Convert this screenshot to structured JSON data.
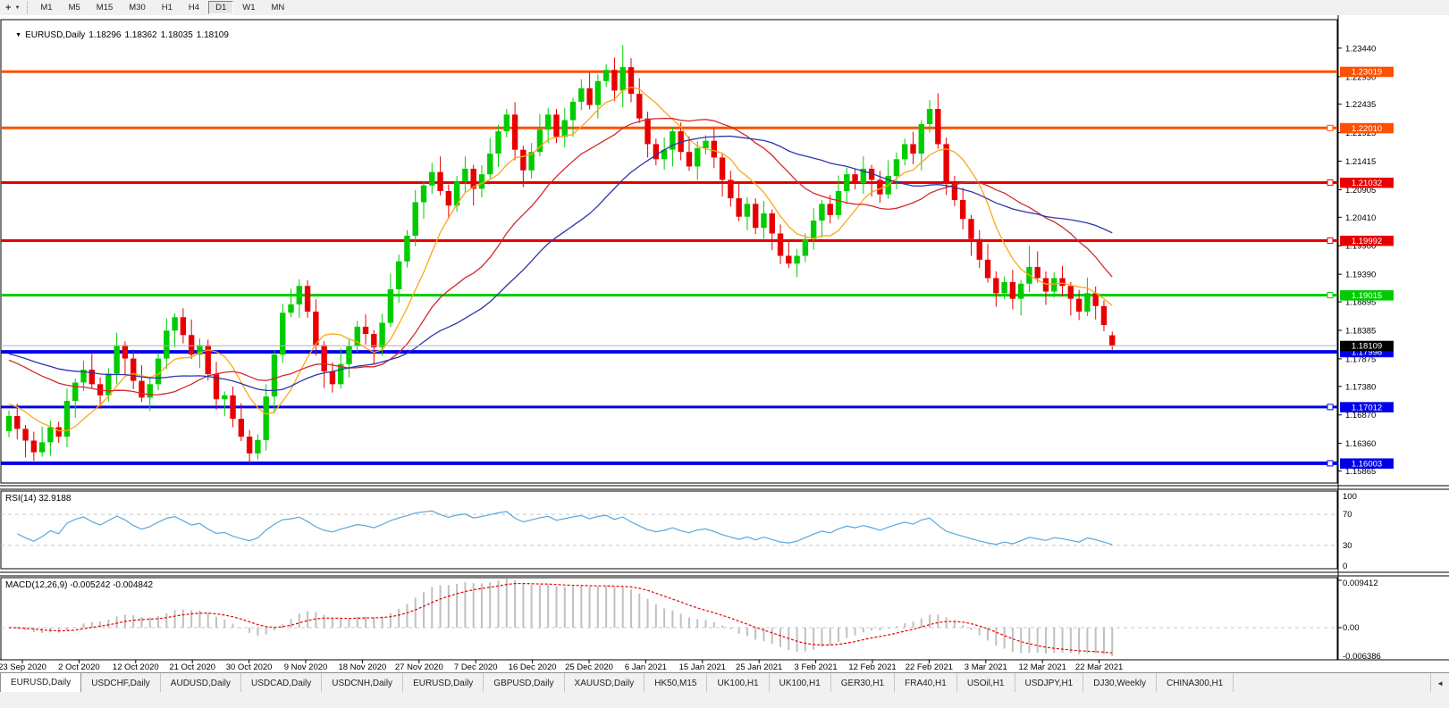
{
  "icons": {
    "cursor": "+",
    "caret": "▼",
    "collapse": "▼",
    "tab_scroll_left": "◄"
  },
  "toolbar": {
    "timeframes": [
      "M1",
      "M5",
      "M15",
      "M30",
      "H1",
      "H4",
      "D1",
      "W1",
      "MN"
    ],
    "active_timeframe": "D1"
  },
  "chart_window": {
    "title": "EURUSD,Daily",
    "open": "1.18296",
    "high": "1.18362",
    "low": "1.18035",
    "close": "1.18109"
  },
  "rsi_panel": {
    "label": "RSI(14) 32.9188"
  },
  "macd_panel": {
    "label": "MACD(12,26,9) -0.005242 -0.004842"
  },
  "chart_data": {
    "type": "candlestick",
    "symbol": "EURUSD",
    "timeframe": "Daily",
    "x_labels": [
      "23 Sep 2020",
      "2 Oct 2020",
      "12 Oct 2020",
      "21 Oct 2020",
      "30 Oct 2020",
      "9 Nov 2020",
      "18 Nov 2020",
      "27 Nov 2020",
      "7 Dec 2020",
      "16 Dec 2020",
      "25 Dec 2020",
      "6 Jan 2021",
      "15 Jan 2021",
      "25 Jan 2021",
      "3 Feb 2021",
      "12 Feb 2021",
      "22 Feb 2021",
      "3 Mar 2021",
      "12 Mar 2021",
      "22 Mar 2021"
    ],
    "y_axis": {
      "top_price": 1.2395,
      "bottom_price": 1.1565,
      "ticks": [
        "1.23440",
        "1.22930",
        "1.22435",
        "1.21925",
        "1.21415",
        "1.20905",
        "1.20410",
        "1.19900",
        "1.19390",
        "1.18895",
        "1.18385",
        "1.17875",
        "1.17380",
        "1.16870",
        "1.16360",
        "1.15865"
      ]
    },
    "horizontal_lines": [
      {
        "label": "1.23019",
        "price": 1.23019,
        "color": "#FF4F00",
        "width": 3,
        "marker": false
      },
      {
        "label": "1.22010",
        "price": 1.2201,
        "color": "#FF4F00",
        "width": 3,
        "marker": true
      },
      {
        "label": "1.21032",
        "price": 1.21032,
        "color": "#E80000",
        "width": 3,
        "marker": true
      },
      {
        "label": "1.19992",
        "price": 1.19992,
        "color": "#E80000",
        "width": 3,
        "marker": true
      },
      {
        "label": "1.19015",
        "price": 1.19015,
        "color": "#00CC00",
        "width": 3,
        "marker": true
      },
      {
        "label": "1.17998",
        "price": 1.17998,
        "color": "#0000E8",
        "width": 4,
        "marker": false
      },
      {
        "label": "1.17012",
        "price": 1.17012,
        "color": "#0000E8",
        "width": 3,
        "marker": true
      },
      {
        "label": "1.16003",
        "price": 1.16003,
        "color": "#0000E8",
        "width": 4,
        "marker": true
      }
    ],
    "current_price": {
      "label": "1.18109",
      "price": 1.18109,
      "line_color": "#B4B4B4",
      "tag_bg": "#000000"
    },
    "candles": {
      "bull_color": "#00CC00",
      "bear_color": "#E80000",
      "first_open": 1.1658,
      "closes": [
        1.1685,
        1.1662,
        1.1641,
        1.162,
        1.1638,
        1.1665,
        1.1648,
        1.1712,
        1.1745,
        1.1768,
        1.1742,
        1.1722,
        1.1761,
        1.1812,
        1.1788,
        1.1748,
        1.1718,
        1.1742,
        1.1788,
        1.1838,
        1.1862,
        1.183,
        1.1795,
        1.1812,
        1.176,
        1.1715,
        1.1722,
        1.168,
        1.1648,
        1.1618,
        1.1642,
        1.172,
        1.1795,
        1.187,
        1.1885,
        1.1918,
        1.1872,
        1.1812,
        1.1765,
        1.1742,
        1.1778,
        1.181,
        1.1845,
        1.1832,
        1.1808,
        1.1852,
        1.1912,
        1.1962,
        1.2008,
        1.2068,
        1.2098,
        1.2122,
        1.2088,
        1.2062,
        1.2105,
        1.2128,
        1.2092,
        1.2118,
        1.2155,
        1.2195,
        1.2225,
        1.2162,
        1.2125,
        1.2158,
        1.2198,
        1.2225,
        1.2185,
        1.2215,
        1.2248,
        1.2272,
        1.2242,
        1.2285,
        1.2305,
        1.2268,
        1.231,
        1.2262,
        1.2218,
        1.2172,
        1.2145,
        1.2162,
        1.2195,
        1.2158,
        1.2132,
        1.2165,
        1.2178,
        1.2148,
        1.2108,
        1.2075,
        1.2042,
        1.2065,
        1.2022,
        1.2048,
        1.2012,
        1.1972,
        1.1958,
        1.1972,
        1.2002,
        1.2035,
        1.2065,
        1.2045,
        1.2088,
        1.2118,
        1.2102,
        1.2128,
        1.2108,
        1.2082,
        1.2115,
        1.2145,
        1.2172,
        1.2155,
        1.2208,
        1.2235,
        1.2172,
        1.2105,
        1.2072,
        1.2038,
        1.2002,
        1.1965,
        1.1932,
        1.1905,
        1.1925,
        1.1895,
        1.1922,
        1.1952,
        1.1932,
        1.1908,
        1.1932,
        1.1918,
        1.1895,
        1.1872,
        1.1905,
        1.1882,
        1.1848,
        1.18109
      ],
      "overrides": {
        "29": {
          "l": 1.16003
        },
        "74": {
          "h": 1.2349
        },
        "123": {
          "h": 1.199
        },
        "133": {
          "o": 1.18296,
          "h": 1.18362,
          "l": 1.18035
        }
      }
    },
    "moving_averages": [
      {
        "name": "fast",
        "type": "sma",
        "period": 8,
        "seed": 1.171,
        "color": "#FFA518"
      },
      {
        "name": "medium",
        "type": "sma",
        "period": 21,
        "seed": 1.179,
        "color": "#D22A2A"
      },
      {
        "name": "slow",
        "type": "sma",
        "period": 34,
        "seed": 1.18,
        "color": "#2D35AC"
      }
    ],
    "rsi": {
      "period": 14,
      "range": [
        0,
        100
      ],
      "levels": [
        "100",
        "70",
        "30",
        "0"
      ],
      "level_values": [
        100,
        70,
        30,
        0
      ],
      "dashed_levels": [
        70,
        30
      ],
      "line_color": "#5AA7DC",
      "value": "32.9188"
    },
    "macd": {
      "fast": 12,
      "slow": 26,
      "signal": 9,
      "ticks": [
        "0.009412",
        "0.00",
        "-0.006386"
      ],
      "tick_values": [
        0.009412,
        0,
        -0.006386
      ],
      "hist_color": "#C0C0C0",
      "signal_color": "#E80000",
      "macd_value": "-0.005242",
      "signal_value": "-0.004842"
    }
  },
  "tabbar": {
    "active_index": 0,
    "tabs": [
      "EURUSD,Daily",
      "USDCHF,Daily",
      "AUDUSD,Daily",
      "USDCAD,Daily",
      "USDCNH,Daily",
      "EURUSD,Daily",
      "GBPUSD,Daily",
      "XAUUSD,Daily",
      "HK50,M15",
      "UK100,H1",
      "UK100,H1",
      "GER30,H1",
      "FRA40,H1",
      "USOil,H1",
      "USDJPY,H1",
      "DJ30,Weekly",
      "CHINA300,H1"
    ]
  }
}
